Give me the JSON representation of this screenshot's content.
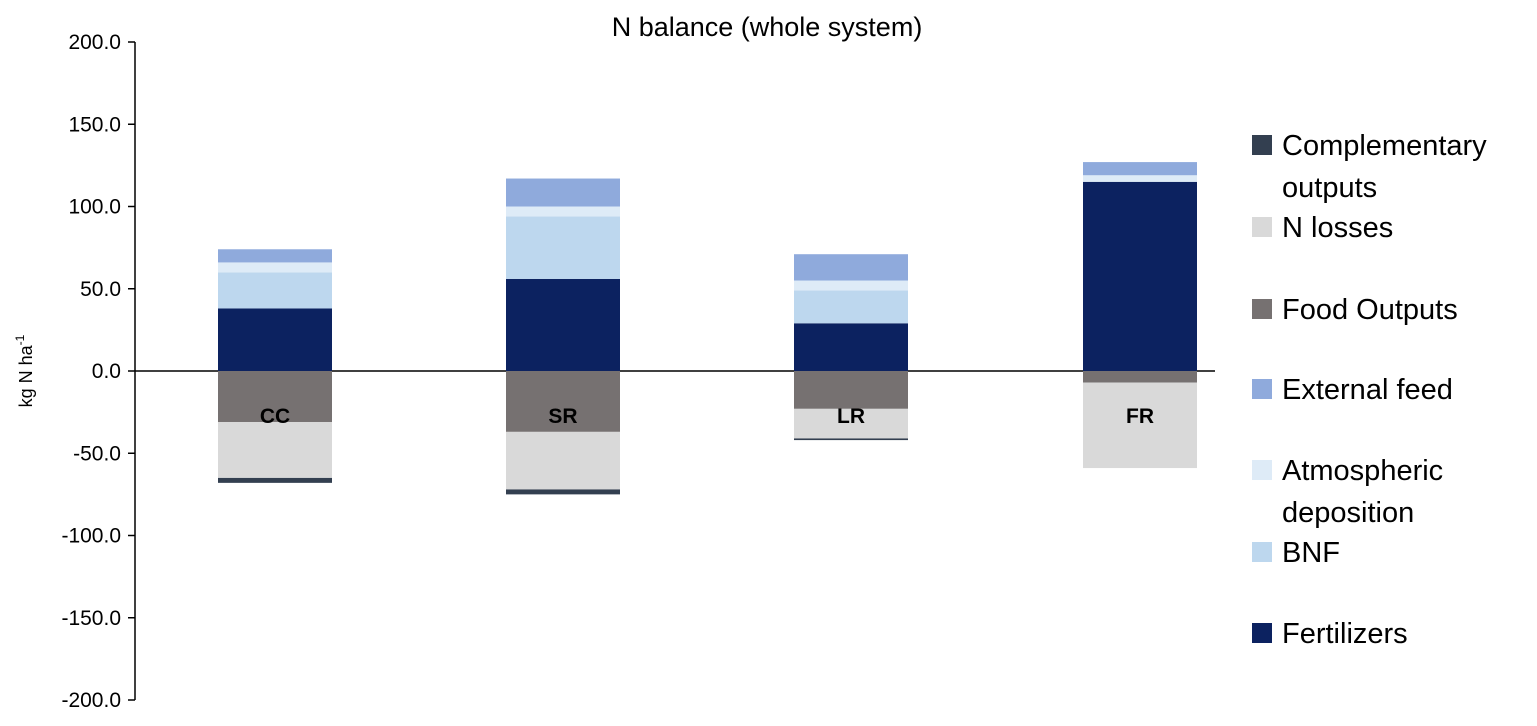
{
  "chart_data": {
    "type": "bar",
    "stacked": true,
    "title": "N balance (whole system)",
    "ylabel": "kg N ha",
    "ylabel_superscript": "-1",
    "xlabel": "",
    "ylim": [
      -200,
      200
    ],
    "yticks": [
      200,
      150,
      100,
      50,
      0,
      -50,
      -100,
      -150,
      -200
    ],
    "ytick_labels": [
      "200.0",
      "150.0",
      "100.0",
      "50.0",
      "0.0",
      "-50.0",
      "-100.0",
      "-150.0",
      "-200.0"
    ],
    "categories": [
      "CC",
      "SR",
      "LR",
      "FR"
    ],
    "legend_position": "right",
    "grid": false,
    "series": [
      {
        "name": "Fertilizers",
        "color": "#0c2260",
        "values": [
          38,
          56,
          29,
          115
        ]
      },
      {
        "name": "BNF",
        "color": "#bdd7ee",
        "values": [
          22,
          38,
          20,
          0
        ]
      },
      {
        "name": "Atmospheric deposition",
        "color": "#deebf7",
        "values": [
          6,
          6,
          6,
          4
        ]
      },
      {
        "name": "External feed",
        "color": "#8faadc",
        "values": [
          8,
          17,
          16,
          8
        ]
      },
      {
        "name": "Food Outputs",
        "color": "#767171",
        "values": [
          -31,
          -37,
          -23,
          -7
        ]
      },
      {
        "name": "N losses",
        "color": "#d9d9d9",
        "values": [
          -34,
          -35,
          -18,
          -52
        ]
      },
      {
        "name": "Complementary outputs",
        "color": "#333f50",
        "values": [
          -3,
          -3,
          -1,
          0
        ]
      }
    ],
    "legend_order": [
      "Complementary outputs",
      "N losses",
      "Food Outputs",
      "External feed",
      "Atmospheric deposition",
      "BNF",
      "Fertilizers"
    ],
    "legend_lines": {
      "Complementary outputs": [
        "Complementary",
        "outputs"
      ],
      "N losses": [
        "N losses"
      ],
      "Food Outputs": [
        "Food Outputs"
      ],
      "External feed": [
        "External feed"
      ],
      "Atmospheric deposition": [
        "Atmospheric",
        "deposition"
      ],
      "BNF": [
        "BNF"
      ],
      "Fertilizers": [
        "Fertilizers"
      ]
    }
  }
}
